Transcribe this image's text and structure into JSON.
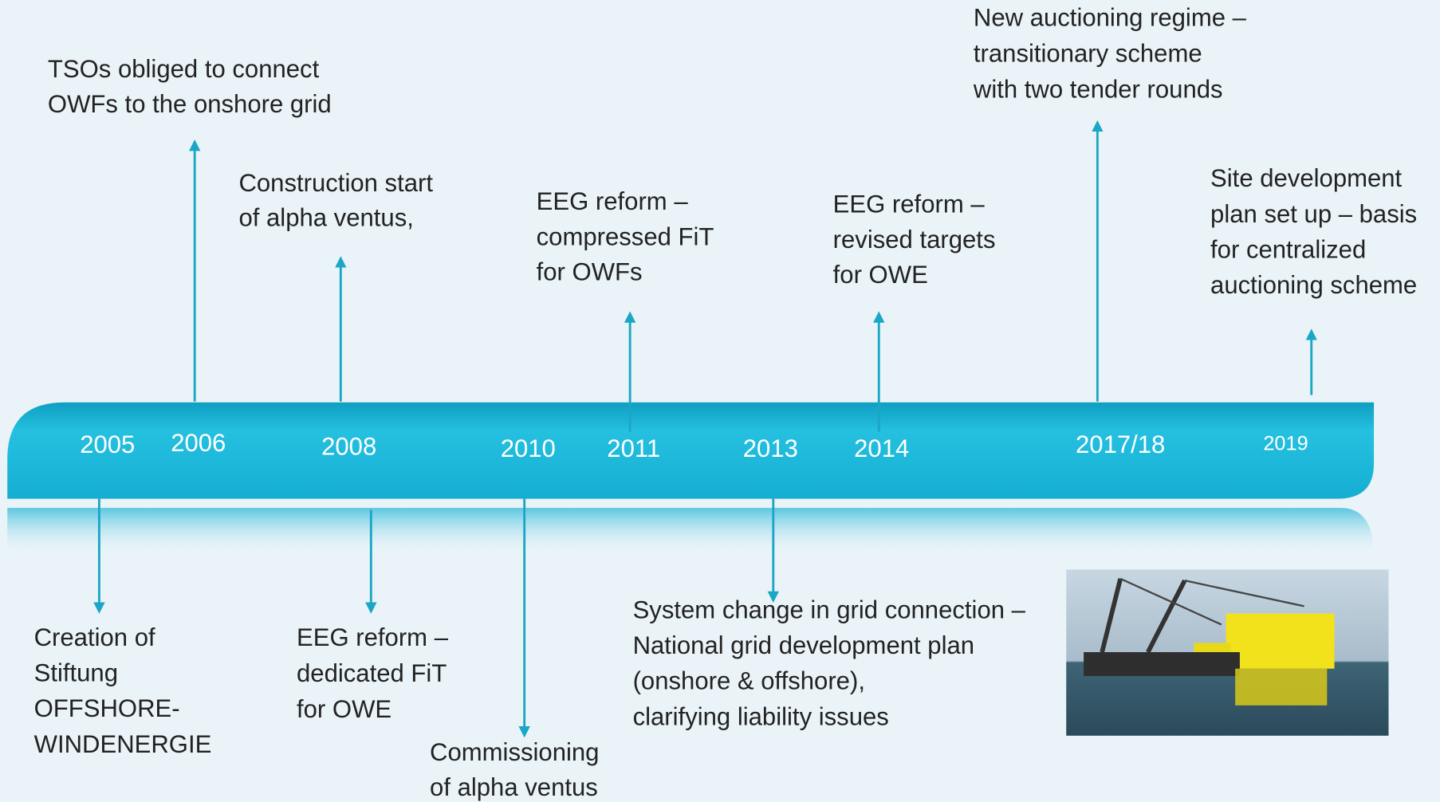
{
  "timeline": {
    "years": [
      "2005",
      "2006",
      "2008",
      "2010",
      "2011",
      "2013",
      "2014",
      "2017/18",
      "2019"
    ],
    "events_above": [
      {
        "lines": [
          "TSOs obliged to connect",
          "OWFs to the onshore grid"
        ]
      },
      {
        "lines": [
          "Construction start",
          "of alpha ventus,"
        ]
      },
      {
        "lines": [
          "EEG reform –",
          "compressed FiT",
          "for OWFs"
        ]
      },
      {
        "lines": [
          "EEG reform –",
          "revised targets",
          "for OWE"
        ]
      },
      {
        "lines": [
          "New auctioning regime –",
          "transitionary scheme",
          "with two tender rounds"
        ]
      },
      {
        "lines": [
          "Site development",
          "plan set up – basis",
          "for  centralized",
          "auctioning scheme"
        ]
      }
    ],
    "events_below": [
      {
        "lines": [
          "Creation of",
          "Stiftung",
          "OFFSHORE-",
          "WINDENERGIE"
        ]
      },
      {
        "lines": [
          "EEG reform –",
          "dedicated FiT",
          "for OWE"
        ]
      },
      {
        "lines": [
          "Commissioning",
          "of alpha ventus"
        ]
      },
      {
        "lines": [
          "System change in grid connection –",
          "National grid development plan",
          "(onshore & offshore),",
          "clarifying liability issues"
        ]
      }
    ]
  }
}
